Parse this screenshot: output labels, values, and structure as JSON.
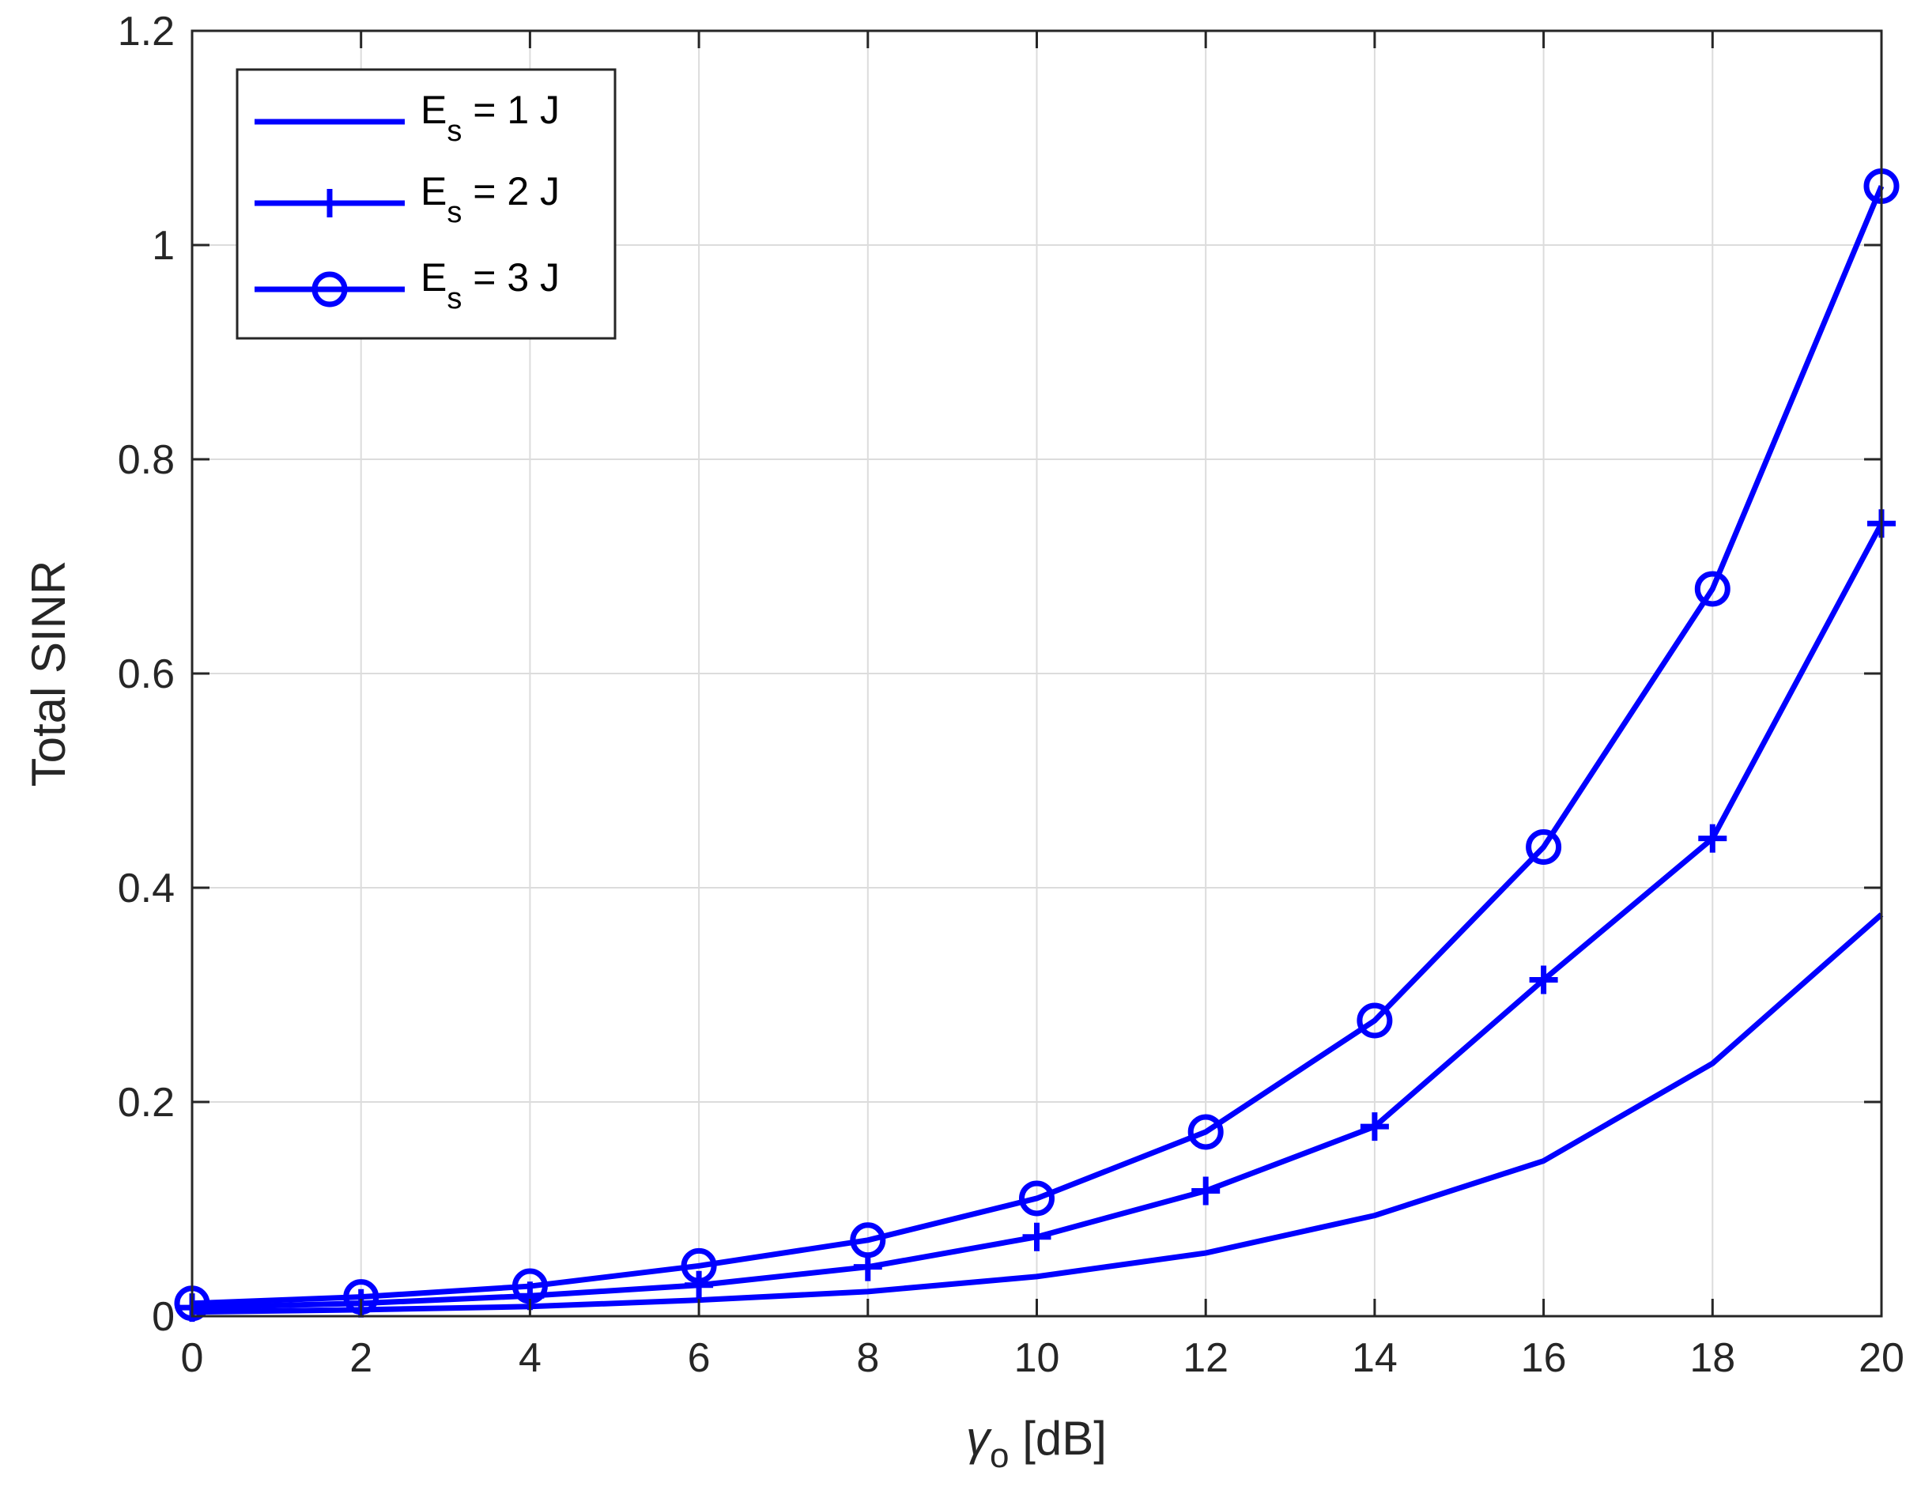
{
  "chart_data": {
    "type": "line",
    "xlabel_symbol": "γ",
    "xlabel_subscript": "o",
    "xlabel_unit": " [dB]",
    "ylabel": "Total SINR",
    "xlim": [
      0,
      20
    ],
    "ylim": [
      0,
      1.2
    ],
    "x": [
      0,
      2,
      4,
      6,
      8,
      10,
      12,
      14,
      16,
      18,
      20
    ],
    "x_ticks": [
      "0",
      "2",
      "4",
      "6",
      "8",
      "10",
      "12",
      "14",
      "16",
      "18",
      "20"
    ],
    "y_ticks": [
      {
        "value": 0,
        "label": "0"
      },
      {
        "value": 0.2,
        "label": "0.2"
      },
      {
        "value": 0.4,
        "label": "0.4"
      },
      {
        "value": 0.6,
        "label": "0.6"
      },
      {
        "value": 0.8,
        "label": "0.8"
      },
      {
        "value": 1.0,
        "label": "1"
      },
      {
        "value": 1.2,
        "label": "1.2"
      }
    ],
    "grid": true,
    "legend_position": "top-left",
    "line_color": "#0000ff",
    "series": [
      {
        "legend_main": "E",
        "legend_sub": "s",
        "legend_rest": " = 1 J",
        "marker": "none",
        "values": [
          0.004,
          0.006,
          0.009,
          0.015,
          0.023,
          0.037,
          0.059,
          0.094,
          0.145,
          0.236,
          0.375
        ]
      },
      {
        "legend_main": "E",
        "legend_sub": "s",
        "legend_rest": " = 2 J",
        "marker": "plus",
        "values": [
          0.008,
          0.012,
          0.019,
          0.029,
          0.046,
          0.074,
          0.117,
          0.177,
          0.314,
          0.446,
          0.74
        ]
      },
      {
        "legend_main": "E",
        "legend_sub": "s",
        "legend_rest": " = 3 J",
        "marker": "circle",
        "values": [
          0.012,
          0.018,
          0.028,
          0.047,
          0.071,
          0.11,
          0.172,
          0.276,
          0.438,
          0.679,
          1.055
        ]
      }
    ]
  }
}
